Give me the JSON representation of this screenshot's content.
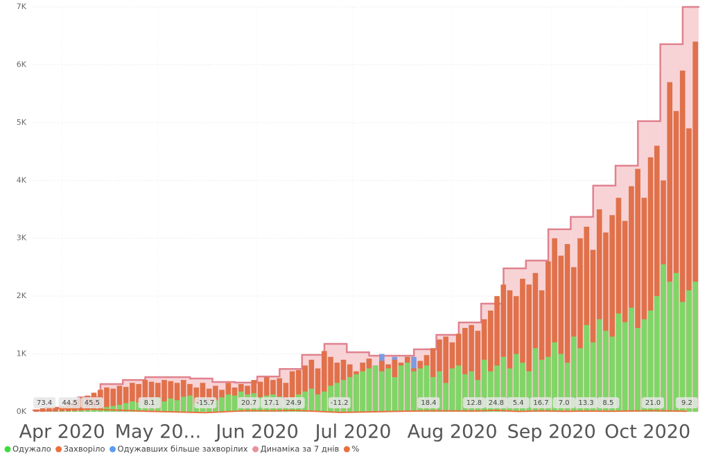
{
  "chart_data": {
    "type": "bar",
    "xlim": [
      0,
      208
    ],
    "ylim": [
      0,
      7000
    ],
    "xticks": [
      {
        "value": 9,
        "label": "Apr 2020"
      },
      {
        "value": 39,
        "label": "May 20..."
      },
      {
        "value": 70,
        "label": "Jun 2020"
      },
      {
        "value": 100,
        "label": "Jul 2020"
      },
      {
        "value": 131,
        "label": "Aug 2020"
      },
      {
        "value": 162,
        "label": "Sep 2020"
      },
      {
        "value": 192,
        "label": "Oct 2020"
      }
    ],
    "yticks": [
      {
        "value": 0,
        "label": "0K"
      },
      {
        "value": 1000,
        "label": "1K"
      },
      {
        "value": 2000,
        "label": "2K"
      },
      {
        "value": 3000,
        "label": "3K"
      },
      {
        "value": 4000,
        "label": "4K"
      },
      {
        "value": 5000,
        "label": "5K"
      },
      {
        "value": 6000,
        "label": "6K"
      },
      {
        "value": 7000,
        "label": "7K"
      }
    ],
    "grid": true,
    "series": [
      {
        "name": "Одужало",
        "type": "bar",
        "color": "#7ed667",
        "legend_color": "#3ddc3d",
        "x": [
          0,
          2,
          4,
          6,
          8,
          10,
          12,
          14,
          16,
          18,
          20,
          22,
          24,
          26,
          28,
          30,
          32,
          34,
          36,
          38,
          40,
          42,
          44,
          46,
          48,
          50,
          52,
          54,
          56,
          58,
          60,
          62,
          64,
          66,
          68,
          70,
          72,
          74,
          76,
          78,
          80,
          82,
          84,
          86,
          88,
          90,
          92,
          94,
          96,
          98,
          100,
          102,
          104,
          106,
          108,
          110,
          112,
          114,
          116,
          118,
          120,
          122,
          124,
          126,
          128,
          130,
          132,
          134,
          136,
          138,
          140,
          142,
          144,
          146,
          148,
          150,
          152,
          154,
          156,
          158,
          160,
          162,
          164,
          166,
          168,
          170,
          172,
          174,
          176,
          178,
          180,
          182,
          184,
          186,
          188,
          190,
          192,
          194,
          196,
          198,
          200,
          202,
          204,
          206
        ],
        "values": [
          0,
          0,
          5,
          5,
          10,
          10,
          15,
          20,
          30,
          40,
          50,
          80,
          100,
          120,
          150,
          180,
          160,
          200,
          220,
          250,
          180,
          230,
          200,
          260,
          280,
          150,
          220,
          180,
          200,
          250,
          300,
          280,
          350,
          300,
          320,
          250,
          280,
          300,
          260,
          200,
          250,
          300,
          350,
          400,
          300,
          350,
          450,
          500,
          550,
          600,
          650,
          700,
          750,
          800,
          700,
          750,
          600,
          800,
          850,
          700,
          750,
          800,
          600,
          700,
          500,
          750,
          800,
          650,
          700,
          550,
          900,
          700,
          800,
          950,
          750,
          1000,
          850,
          700,
          1100,
          900,
          950,
          1200,
          1000,
          850,
          1300,
          1100,
          1500,
          1200,
          1600,
          1400,
          1300,
          1700,
          1550,
          1800,
          1450,
          1600,
          1750,
          2000,
          2550,
          2250,
          2400,
          1900,
          2100,
          2250
        ]
      },
      {
        "name": "Захворіло",
        "type": "bar",
        "color": "#e0714a",
        "legend_color": "#e8703f",
        "x": [
          0,
          2,
          4,
          6,
          8,
          10,
          12,
          14,
          16,
          18,
          20,
          22,
          24,
          26,
          28,
          30,
          32,
          34,
          36,
          38,
          40,
          42,
          44,
          46,
          48,
          50,
          52,
          54,
          56,
          58,
          60,
          62,
          64,
          66,
          68,
          70,
          72,
          74,
          76,
          78,
          80,
          82,
          84,
          86,
          88,
          90,
          92,
          94,
          96,
          98,
          100,
          102,
          104,
          106,
          108,
          110,
          112,
          114,
          116,
          118,
          120,
          122,
          124,
          126,
          128,
          130,
          132,
          134,
          136,
          138,
          140,
          142,
          144,
          146,
          148,
          150,
          152,
          154,
          156,
          158,
          160,
          162,
          164,
          166,
          168,
          170,
          172,
          174,
          176,
          178,
          180,
          182,
          184,
          186,
          188,
          190,
          192,
          194,
          196,
          198,
          200,
          202,
          204,
          206
        ],
        "values": [
          40,
          60,
          80,
          80,
          100,
          160,
          200,
          250,
          280,
          330,
          380,
          420,
          400,
          450,
          430,
          500,
          480,
          550,
          520,
          500,
          550,
          530,
          500,
          550,
          480,
          420,
          500,
          400,
          450,
          380,
          500,
          420,
          480,
          450,
          550,
          520,
          600,
          550,
          580,
          500,
          700,
          720,
          800,
          900,
          750,
          1050,
          950,
          850,
          900,
          820,
          700,
          850,
          920,
          800,
          880,
          820,
          900,
          850,
          950,
          750,
          880,
          980,
          1100,
          1250,
          1300,
          1200,
          1350,
          1450,
          1500,
          1400,
          1600,
          1750,
          2000,
          2200,
          2100,
          2000,
          2300,
          2200,
          2400,
          2100,
          2600,
          3000,
          2700,
          2900,
          2500,
          3000,
          3200,
          2800,
          3500,
          3100,
          3400,
          3700,
          3300,
          3900,
          4200,
          3700,
          4400,
          4600,
          4000,
          5700,
          5200,
          5900,
          4900,
          6400
        ]
      },
      {
        "name": "Одужавших більше захворілих",
        "type": "bar",
        "color": "#7d9be0",
        "legend_color": "#5b9bf0",
        "x": [
          68,
          104,
          108,
          112,
          118
        ],
        "values": [
          480,
          900,
          1000,
          950,
          950
        ]
      },
      {
        "name": "Динаміка за 7 днів",
        "type": "step",
        "color": "#e0828e",
        "fill": "#f7d3d6",
        "legend_color": "#e8929a",
        "x": [
          0,
          7,
          14,
          21,
          28,
          35,
          42,
          49,
          56,
          63,
          70,
          77,
          84,
          91,
          98,
          105,
          112,
          119,
          126,
          133,
          140,
          147,
          154,
          161,
          168,
          175,
          182,
          189,
          196,
          203
        ],
        "values": [
          25,
          70,
          250,
          480,
          550,
          600,
          600,
          575,
          515,
          505,
          610,
          740,
          985,
          1175,
          1030,
          970,
          970,
          1080,
          1330,
          1545,
          1870,
          2480,
          2615,
          3155,
          3370,
          3910,
          4255,
          5025,
          6355,
          7000
        ]
      },
      {
        "name": "%",
        "type": "line",
        "color": "#e8703f",
        "legend_color": "#e8703f",
        "x": [
          3.5,
          11.4,
          18.4,
          36.3,
          53.8,
          67.4,
          74.5,
          81.4,
          95.7,
          123.6,
          137.8,
          144.7,
          151.6,
          158.7,
          165.9,
          172.8,
          179.7,
          193.7,
          204.3
        ],
        "values": [
          73.4,
          44.5,
          45.5,
          8.1,
          -15.7,
          20.7,
          17.1,
          24.9,
          -11.2,
          18.4,
          12.8,
          24.8,
          5.4,
          16.7,
          7,
          13.3,
          8.5,
          21,
          9.2
        ],
        "value_labels": [
          "73.4",
          "44.5",
          "45.5",
          "8.1",
          "-15.7",
          "20.7",
          "17.1",
          "24.9",
          "-11.2",
          "18.4",
          "12.8",
          "24.8",
          "5.4",
          "16.7",
          "7.0",
          "13.3",
          "8.5",
          "21.0",
          "9.2"
        ]
      }
    ]
  }
}
